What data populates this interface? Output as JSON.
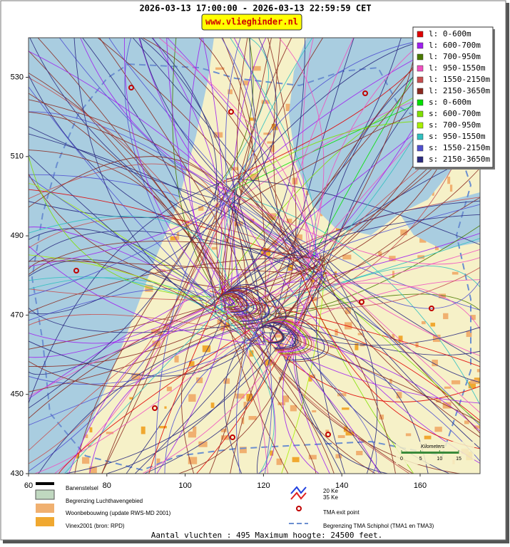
{
  "header": {
    "title": "2026-03-13 17:00:00 - 2026-03-13 22:59:59 CET",
    "site": "www.vlieghinder.nl"
  },
  "map": {
    "xticks": [
      60,
      80,
      100,
      120,
      140,
      160
    ],
    "yticks": [
      430,
      450,
      470,
      490,
      510,
      530
    ],
    "scale": {
      "title": "Kilometers",
      "ticks": [
        0,
        5,
        10,
        15
      ]
    }
  },
  "legend": {
    "entries": [
      {
        "label": "l: 0-600m",
        "color": "#e00000"
      },
      {
        "label": "l: 600-700m",
        "color": "#a020f0"
      },
      {
        "label": "l: 700-950m",
        "color": "#4a7a00"
      },
      {
        "label": "l: 950-1550m",
        "color": "#f050c0"
      },
      {
        "label": "l: 1550-2150m",
        "color": "#c85050"
      },
      {
        "label": "l: 2150-3650m",
        "color": "#8b2a20"
      },
      {
        "label": "s: 0-600m",
        "color": "#00e000"
      },
      {
        "label": "s: 600-700m",
        "color": "#80e000"
      },
      {
        "label": "s: 700-950m",
        "color": "#a8f000"
      },
      {
        "label": "s: 950-1550m",
        "color": "#30c0c0"
      },
      {
        "label": "s: 1550-2150m",
        "color": "#5050d0"
      },
      {
        "label": "s: 2150-3650m",
        "color": "#2a2a80"
      }
    ]
  },
  "key": {
    "runways": "Banenstelsel",
    "airport": "Begrenzing Luchthavengebied",
    "housing": "Woonbebouwing (update RWS-MD 2001)",
    "vinex": "Vinex2001 (bron: RPD)",
    "contour_20": "20 Ke",
    "contour_35": "35 Ke",
    "exit": "TMA exit point",
    "tma": "Begrenzing TMA Schiphol  (TMA1 en TMA3)"
  },
  "footer": "Aantal vluchten : 495 Maximum hoogte: 24500 feet."
}
